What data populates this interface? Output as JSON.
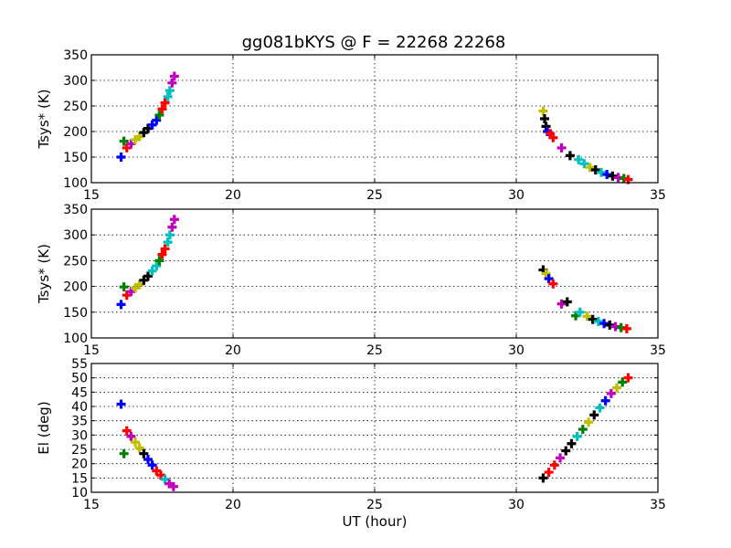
{
  "chart_data": {
    "type": "scatter",
    "title": "gg081bKYS @ F = 22268 22268",
    "marker": "plus-thick",
    "colors": [
      "#0000ff",
      "#008000",
      "#ff0000",
      "#00bfbf",
      "#bf00bf",
      "#bfbf00",
      "#000000"
    ],
    "panels": [
      {
        "ylabel": "Tsys* (K)",
        "xlabel": "",
        "xlim": [
          15,
          35
        ],
        "ylim": [
          100,
          350
        ],
        "xticks": [
          "15",
          "20",
          "25",
          "30",
          "35"
        ],
        "yticks": [
          "100",
          "150",
          "200",
          "250",
          "300",
          "350"
        ],
        "grid": true,
        "points": [
          [
            16.05,
            150,
            0
          ],
          [
            16.15,
            181,
            1
          ],
          [
            16.25,
            168,
            2
          ],
          [
            16.4,
            176,
            4
          ],
          [
            16.55,
            184,
            5
          ],
          [
            16.7,
            190,
            5
          ],
          [
            16.85,
            198,
            6
          ],
          [
            17.0,
            206,
            6
          ],
          [
            17.15,
            213,
            0
          ],
          [
            17.3,
            222,
            0
          ],
          [
            17.4,
            232,
            1
          ],
          [
            17.5,
            244,
            2
          ],
          [
            17.6,
            256,
            2
          ],
          [
            17.7,
            268,
            3
          ],
          [
            17.77,
            280,
            3
          ],
          [
            17.85,
            295,
            4
          ],
          [
            17.93,
            308,
            4
          ],
          [
            30.95,
            240,
            5
          ],
          [
            31.0,
            225,
            6
          ],
          [
            31.05,
            210,
            6
          ],
          [
            31.1,
            200,
            0
          ],
          [
            31.2,
            196,
            2
          ],
          [
            31.3,
            188,
            2
          ],
          [
            31.6,
            168,
            4
          ],
          [
            31.9,
            153,
            6
          ],
          [
            32.2,
            145,
            3
          ],
          [
            32.4,
            137,
            3
          ],
          [
            32.6,
            130,
            5
          ],
          [
            32.8,
            125,
            6
          ],
          [
            33.0,
            120,
            3
          ],
          [
            33.2,
            116,
            0
          ],
          [
            33.4,
            113,
            6
          ],
          [
            33.6,
            110,
            4
          ],
          [
            33.8,
            108,
            1
          ],
          [
            33.95,
            106,
            2
          ]
        ]
      },
      {
        "ylabel": "Tsys* (K)",
        "xlabel": "",
        "xlim": [
          15,
          35
        ],
        "ylim": [
          100,
          350
        ],
        "xticks": [
          "15",
          "20",
          "25",
          "30",
          "35"
        ],
        "yticks": [
          "100",
          "150",
          "200",
          "250",
          "300",
          "350"
        ],
        "grid": true,
        "points": [
          [
            16.05,
            165,
            0
          ],
          [
            16.15,
            199,
            1
          ],
          [
            16.25,
            183,
            2
          ],
          [
            16.4,
            190,
            4
          ],
          [
            16.55,
            197,
            5
          ],
          [
            16.7,
            204,
            5
          ],
          [
            16.85,
            212,
            6
          ],
          [
            17.0,
            220,
            6
          ],
          [
            17.15,
            230,
            3
          ],
          [
            17.3,
            240,
            3
          ],
          [
            17.4,
            250,
            1
          ],
          [
            17.5,
            262,
            2
          ],
          [
            17.6,
            273,
            2
          ],
          [
            17.7,
            286,
            3
          ],
          [
            17.77,
            300,
            3
          ],
          [
            17.85,
            315,
            4
          ],
          [
            17.93,
            330,
            4
          ],
          [
            30.95,
            232,
            6
          ],
          [
            31.05,
            225,
            5
          ],
          [
            31.15,
            215,
            0
          ],
          [
            31.3,
            205,
            2
          ],
          [
            31.6,
            166,
            4
          ],
          [
            31.8,
            170,
            6
          ],
          [
            32.1,
            143,
            1
          ],
          [
            32.25,
            150,
            3
          ],
          [
            32.5,
            142,
            5
          ],
          [
            32.7,
            136,
            6
          ],
          [
            32.9,
            132,
            3
          ],
          [
            33.1,
            128,
            0
          ],
          [
            33.3,
            125,
            6
          ],
          [
            33.5,
            122,
            4
          ],
          [
            33.7,
            120,
            1
          ],
          [
            33.9,
            118,
            2
          ]
        ]
      },
      {
        "ylabel": "El (deg)",
        "xlabel": "UT (hour)",
        "xlim": [
          15,
          35
        ],
        "ylim": [
          10,
          55
        ],
        "xticks": [
          "15",
          "20",
          "25",
          "30",
          "35"
        ],
        "yticks": [
          "10",
          "15",
          "20",
          "25",
          "30",
          "35",
          "40",
          "45",
          "50",
          "55"
        ],
        "grid": true,
        "points": [
          [
            16.05,
            40.8,
            0
          ],
          [
            16.15,
            23.5,
            1
          ],
          [
            16.25,
            31.5,
            2
          ],
          [
            16.4,
            29.5,
            4
          ],
          [
            16.55,
            27.5,
            5
          ],
          [
            16.7,
            25.5,
            5
          ],
          [
            16.85,
            23.5,
            6
          ],
          [
            17.0,
            21.5,
            0
          ],
          [
            17.15,
            19.5,
            0
          ],
          [
            17.3,
            17.5,
            2
          ],
          [
            17.45,
            16.0,
            2
          ],
          [
            17.6,
            14.5,
            3
          ],
          [
            17.75,
            13.0,
            4
          ],
          [
            17.9,
            12.0,
            4
          ],
          [
            30.95,
            15.0,
            6
          ],
          [
            31.15,
            17.0,
            2
          ],
          [
            31.35,
            19.5,
            2
          ],
          [
            31.55,
            22.0,
            4
          ],
          [
            31.75,
            24.5,
            6
          ],
          [
            31.95,
            27.0,
            6
          ],
          [
            32.15,
            29.5,
            3
          ],
          [
            32.35,
            32.0,
            1
          ],
          [
            32.55,
            34.5,
            5
          ],
          [
            32.75,
            37.0,
            6
          ],
          [
            32.95,
            39.5,
            3
          ],
          [
            33.15,
            42.0,
            0
          ],
          [
            33.35,
            44.5,
            4
          ],
          [
            33.55,
            46.5,
            5
          ],
          [
            33.75,
            48.5,
            1
          ],
          [
            33.95,
            50.0,
            2
          ]
        ]
      }
    ]
  }
}
